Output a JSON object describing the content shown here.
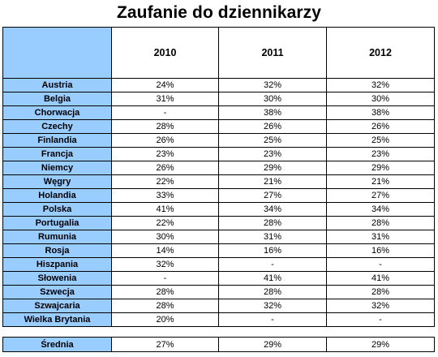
{
  "title": "Zaufanie do dziennikarzy",
  "header": {
    "corner": "",
    "years": [
      "2010",
      "2011",
      "2012"
    ]
  },
  "colors": {
    "row_header_fill": "#99ccff",
    "cell_fill": "#ffffff",
    "border": "#000000"
  },
  "rows": [
    {
      "country": "Austria",
      "values": [
        "24%",
        "32%",
        "32%"
      ]
    },
    {
      "country": "Belgia",
      "values": [
        "31%",
        "30%",
        "30%"
      ]
    },
    {
      "country": "Chorwacja",
      "values": [
        "-",
        "38%",
        "38%"
      ]
    },
    {
      "country": "Czechy",
      "values": [
        "28%",
        "26%",
        "26%"
      ]
    },
    {
      "country": "Finlandia",
      "values": [
        "26%",
        "25%",
        "25%"
      ]
    },
    {
      "country": "Francja",
      "values": [
        "23%",
        "23%",
        "23%"
      ]
    },
    {
      "country": "Niemcy",
      "values": [
        "26%",
        "29%",
        "29%"
      ]
    },
    {
      "country": "Węgry",
      "values": [
        "22%",
        "21%",
        "21%"
      ]
    },
    {
      "country": "Holandia",
      "values": [
        "33%",
        "27%",
        "27%"
      ]
    },
    {
      "country": "Polska",
      "values": [
        "41%",
        "34%",
        "34%"
      ]
    },
    {
      "country": "Portugalia",
      "values": [
        "22%",
        "28%",
        "28%"
      ]
    },
    {
      "country": "Rumunia",
      "values": [
        "30%",
        "31%",
        "31%"
      ]
    },
    {
      "country": "Rosja",
      "values": [
        "14%",
        "16%",
        "16%"
      ]
    },
    {
      "country": "Hiszpania",
      "values": [
        "32%",
        "-",
        "-"
      ]
    },
    {
      "country": "Słowenia",
      "values": [
        "-",
        "41%",
        "41%"
      ]
    },
    {
      "country": "Szwecja",
      "values": [
        "28%",
        "28%",
        "28%"
      ]
    },
    {
      "country": "Szwajcaria",
      "values": [
        "28%",
        "32%",
        "32%"
      ]
    },
    {
      "country": "Wielka Brytania",
      "values": [
        "20%",
        "-",
        "-"
      ]
    }
  ],
  "average": {
    "label": "Średnia",
    "values": [
      "27%",
      "29%",
      "29%"
    ]
  }
}
